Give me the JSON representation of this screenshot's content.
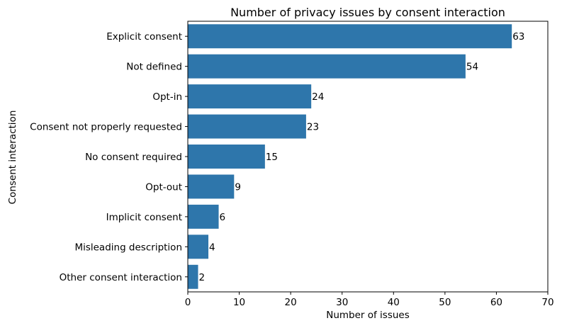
{
  "chart_data": {
    "type": "bar",
    "orientation": "horizontal",
    "title": "Number of privacy issues by consent interaction",
    "xlabel": "Number of issues",
    "ylabel": "Consent interaction",
    "categories": [
      "Explicit consent",
      "Not defined",
      "Opt-in",
      "Consent not properly requested",
      "No consent required",
      "Opt-out",
      "Implicit consent",
      "Misleading description",
      "Other consent interaction"
    ],
    "values": [
      63,
      54,
      24,
      23,
      15,
      9,
      6,
      4,
      2
    ],
    "data_labels": [
      "63",
      "54",
      "24",
      "23",
      "15",
      "9",
      "6",
      "4",
      "2"
    ],
    "xlim": [
      0,
      70
    ],
    "xticks": [
      "0",
      "10",
      "20",
      "30",
      "40",
      "50",
      "60",
      "70"
    ],
    "grid": false,
    "legend": "none",
    "bar_color": "#2e76ab"
  }
}
